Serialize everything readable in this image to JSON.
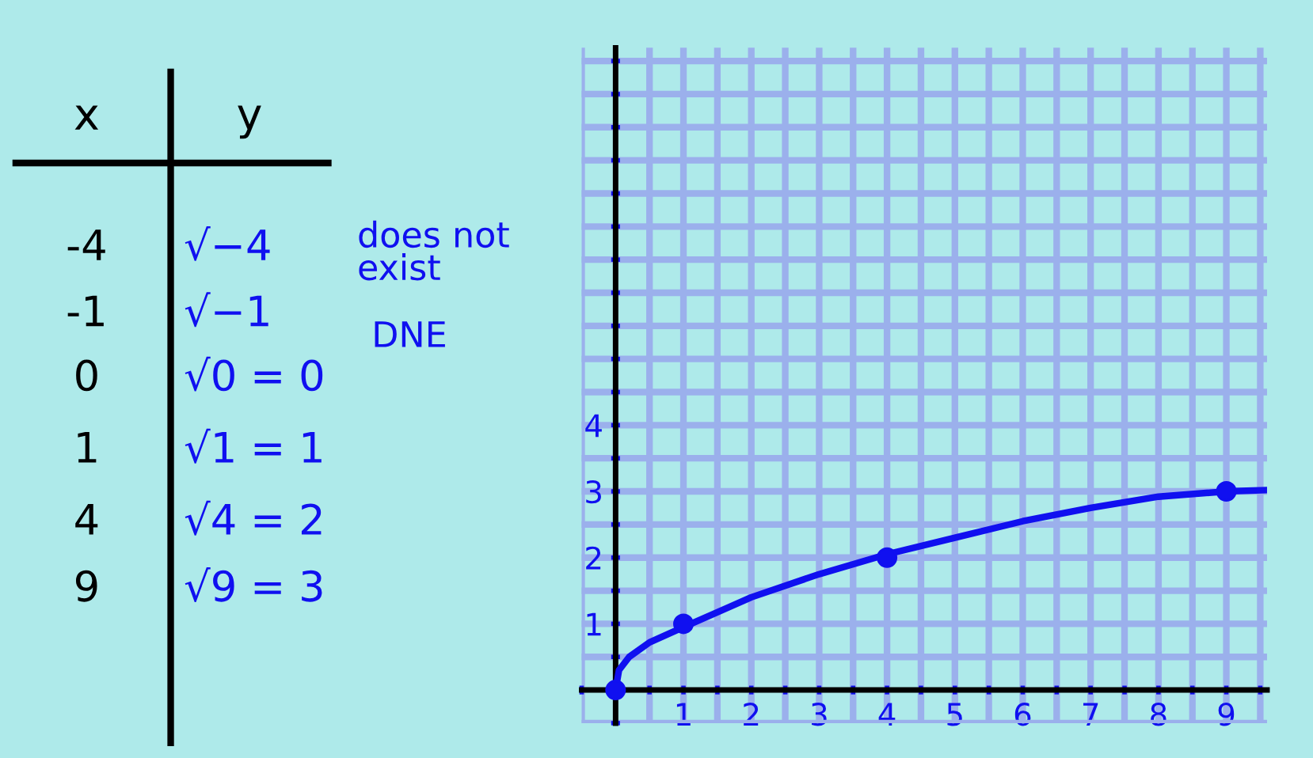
{
  "chart_data": {
    "type": "line",
    "annotations": [
      "x",
      "y",
      "-4",
      "√−4",
      "-1",
      "√−1",
      "0",
      "√0 = 0",
      "1",
      "√1 = 1",
      "4",
      "√4 = 2",
      "9",
      "√9 = 3",
      "does not\nexist",
      "DNE"
    ],
    "series": [
      {
        "color": "#1010f0",
        "marker": "none",
        "x": [
          0,
          0.05,
          0.2,
          0.5,
          1,
          2,
          3,
          4,
          5,
          6,
          7,
          8,
          9,
          9.6
        ],
        "values": [
          0,
          0.3,
          0.5,
          0.72,
          0.95,
          1.4,
          1.75,
          2.05,
          2.3,
          2.55,
          2.75,
          2.92,
          3.0,
          3.02
        ]
      },
      {
        "type": "scatter",
        "color": "#1010f0",
        "marker": "circle",
        "x": [
          0,
          1,
          4,
          9
        ],
        "values": [
          0,
          1,
          2,
          3
        ]
      }
    ],
    "xlim": [
      -0.5,
      9.6
    ],
    "ylim": [
      -0.5,
      9.7
    ],
    "xticks": [
      {
        "value": -0.5,
        "label": null
      },
      {
        "value": 0.5,
        "label": null
      },
      1,
      {
        "value": 1.5,
        "label": null
      },
      2,
      {
        "value": 2.5,
        "label": null
      },
      3,
      {
        "value": 3.5,
        "label": null
      },
      4,
      {
        "value": 4.5,
        "label": null
      },
      5,
      {
        "value": 5.5,
        "label": null
      },
      6,
      {
        "value": 6.5,
        "label": null
      },
      7,
      {
        "value": 7.5,
        "label": null
      },
      8,
      {
        "value": 8.5,
        "label": null
      },
      9,
      {
        "value": 9.5,
        "label": null
      }
    ],
    "yticks": [
      {
        "value": -0.5,
        "label": null
      },
      {
        "value": 0.5,
        "label": null
      },
      1,
      {
        "value": 1.5,
        "label": null
      },
      2,
      {
        "value": 2.5,
        "label": null
      },
      3,
      {
        "value": 3.5,
        "label": null
      },
      4,
      {
        "value": 4.5,
        "label": null
      },
      {
        "value": 5,
        "label": null
      },
      {
        "value": 5.5,
        "label": null
      },
      {
        "value": 6,
        "label": null
      },
      {
        "value": 6.5,
        "label": null
      },
      {
        "value": 7,
        "label": null
      },
      {
        "value": 7.5,
        "label": null
      },
      {
        "value": 8,
        "label": null
      },
      {
        "value": 8.5,
        "label": null
      },
      {
        "value": 9,
        "label": null
      },
      {
        "value": 9.5,
        "label": null
      }
    ],
    "grid": true,
    "legend": false
  }
}
